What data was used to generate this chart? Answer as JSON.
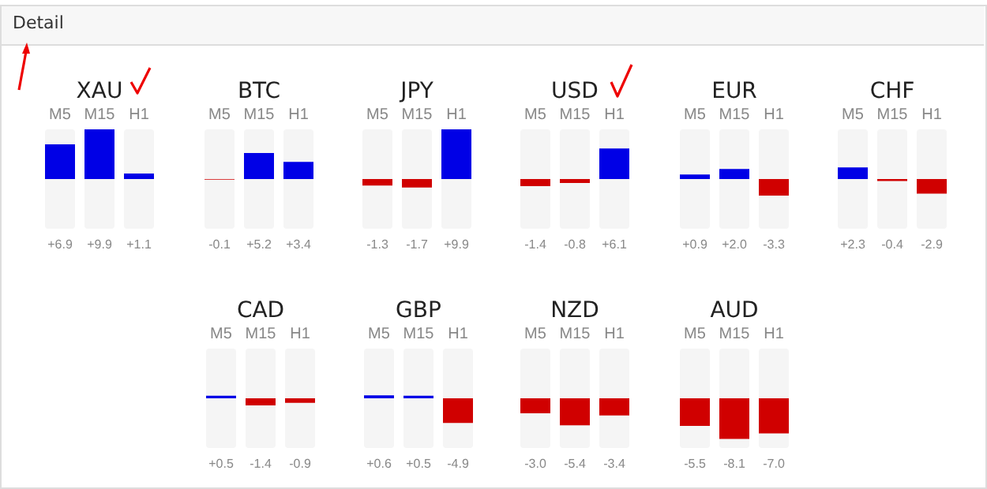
{
  "chart_data": [
    {
      "type": "other",
      "title": "Detail"
    },
    {
      "type": "bar",
      "title": "XAU",
      "categories": [
        "M5",
        "M15",
        "H1"
      ],
      "values": [
        6.9,
        9.9,
        1.1
      ],
      "value_labels": [
        "+6.9",
        "+9.9",
        "+1.1"
      ],
      "colors": [
        "#0000e6",
        "#0000e6",
        "#0000e6"
      ]
    },
    {
      "type": "bar",
      "title": "BTC",
      "categories": [
        "M5",
        "M15",
        "H1"
      ],
      "values": [
        -0.1,
        5.2,
        3.4
      ],
      "value_labels": [
        "-0.1",
        "+5.2",
        "+3.4"
      ],
      "colors": [
        "#d00000",
        "#0000e6",
        "#0000e6"
      ]
    },
    {
      "type": "bar",
      "title": "JPY",
      "categories": [
        "M5",
        "M15",
        "H1"
      ],
      "values": [
        -1.3,
        -1.7,
        9.9
      ],
      "value_labels": [
        "-1.3",
        "-1.7",
        "+9.9"
      ],
      "colors": [
        "#d00000",
        "#d00000",
        "#0000e6"
      ]
    },
    {
      "type": "bar",
      "title": "USD",
      "categories": [
        "M5",
        "M15",
        "H1"
      ],
      "values": [
        -1.4,
        -0.8,
        6.1
      ],
      "value_labels": [
        "-1.4",
        "-0.8",
        "+6.1"
      ],
      "colors": [
        "#d00000",
        "#d00000",
        "#0000e6"
      ]
    },
    {
      "type": "bar",
      "title": "EUR",
      "categories": [
        "M5",
        "M15",
        "H1"
      ],
      "values": [
        0.9,
        2.0,
        -3.3
      ],
      "value_labels": [
        "+0.9",
        "+2.0",
        "-3.3"
      ],
      "colors": [
        "#0000e6",
        "#0000e6",
        "#d00000"
      ]
    },
    {
      "type": "bar",
      "title": "CHF",
      "categories": [
        "M5",
        "M15",
        "H1"
      ],
      "values": [
        2.3,
        -0.4,
        -2.9
      ],
      "value_labels": [
        "+2.3",
        "-0.4",
        "-2.9"
      ],
      "colors": [
        "#0000e6",
        "#d00000",
        "#d00000"
      ]
    },
    {
      "type": "bar",
      "title": "CAD",
      "categories": [
        "M5",
        "M15",
        "H1"
      ],
      "values": [
        0.5,
        -1.4,
        -0.9
      ],
      "value_labels": [
        "+0.5",
        "-1.4",
        "-0.9"
      ],
      "colors": [
        "#0000e6",
        "#d00000",
        "#d00000"
      ]
    },
    {
      "type": "bar",
      "title": "GBP",
      "categories": [
        "M5",
        "M15",
        "H1"
      ],
      "values": [
        0.6,
        0.5,
        -4.9
      ],
      "value_labels": [
        "+0.6",
        "+0.5",
        "-4.9"
      ],
      "colors": [
        "#0000e6",
        "#0000e6",
        "#d00000"
      ]
    },
    {
      "type": "bar",
      "title": "NZD",
      "categories": [
        "M5",
        "M15",
        "H1"
      ],
      "values": [
        -3.0,
        -5.4,
        -3.4
      ],
      "value_labels": [
        "-3.0",
        "-5.4",
        "-3.4"
      ],
      "colors": [
        "#d00000",
        "#d00000",
        "#d00000"
      ]
    },
    {
      "type": "bar",
      "title": "AUD",
      "categories": [
        "M5",
        "M15",
        "H1"
      ],
      "values": [
        -5.5,
        -8.1,
        -7.0
      ],
      "value_labels": [
        "-5.5",
        "-8.1",
        "-7.0"
      ],
      "colors": [
        "#d00000",
        "#d00000",
        "#d00000"
      ]
    }
  ]
}
